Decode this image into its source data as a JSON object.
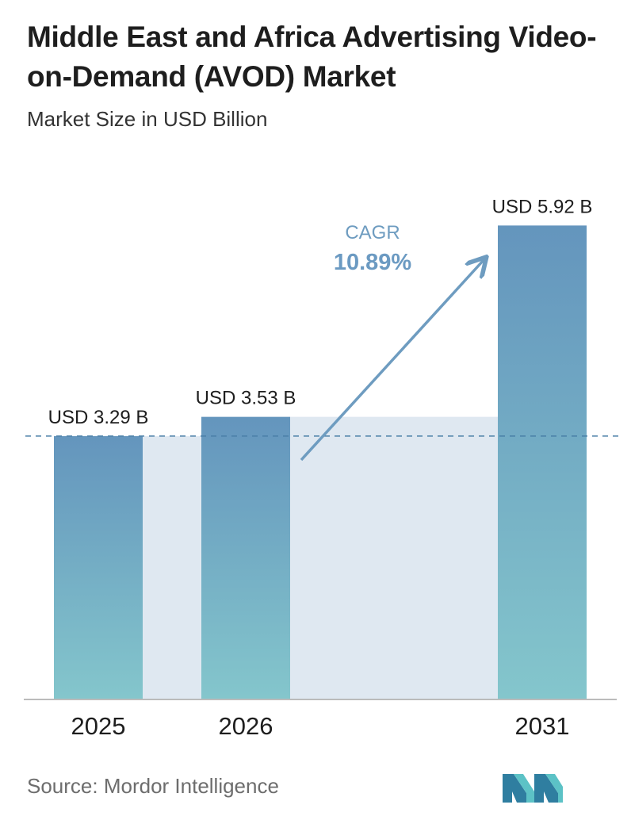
{
  "header": {
    "title": "Middle East and Africa Advertising Video-on-Demand (AVOD) Market",
    "subtitle": "Market Size in USD Billion"
  },
  "chart_data": {
    "type": "bar",
    "categories": [
      "2025",
      "2026",
      "2031"
    ],
    "values": [
      3.29,
      3.53,
      5.92
    ],
    "value_labels": [
      "USD 3.29 B",
      "USD 3.53 B",
      "USD 5.92 B"
    ],
    "unit": "USD Billion",
    "ylim": [
      0,
      6.3
    ],
    "grid": false,
    "reference_line": {
      "value": 3.29,
      "style": "dashed"
    },
    "annotation": {
      "label": "CAGR",
      "value": "10.89%"
    },
    "colors": {
      "bar_top": "#6495bd",
      "bar_bottom": "#84c6cc",
      "band": "#dfe8f1",
      "arrow": "#6e9cc0",
      "cagr_label": "#6e9cc0",
      "cagr_value": "#6b9ac2",
      "axis": "#bbbbbb"
    }
  },
  "footer": {
    "source": "Source:  Mordor Intelligence",
    "logo_icon": "mordor-intelligence-logo"
  }
}
